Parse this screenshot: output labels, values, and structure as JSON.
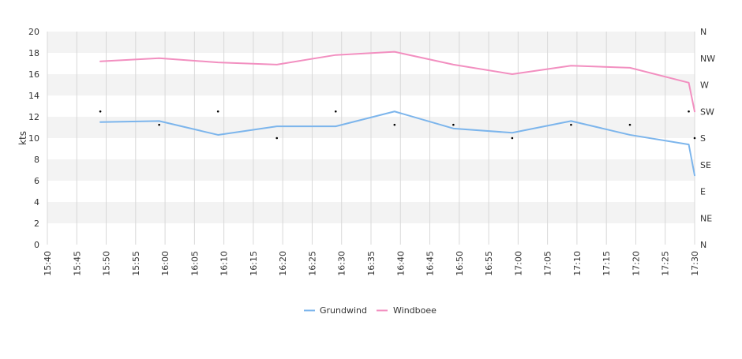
{
  "chart_data": {
    "type": "line",
    "ylabel": "kts",
    "ylim": [
      0,
      20
    ],
    "yticks": [
      "0",
      "2",
      "4",
      "6",
      "8",
      "10",
      "12",
      "14",
      "16",
      "18",
      "20"
    ],
    "x_ticks": [
      "15:40",
      "15:45",
      "15:50",
      "15:55",
      "16:00",
      "16:05",
      "16:10",
      "16:15",
      "16:20",
      "16:25",
      "16:30",
      "16:35",
      "16:40",
      "16:45",
      "16:50",
      "16:55",
      "17:00",
      "17:05",
      "17:10",
      "17:15",
      "17:20",
      "17:25",
      "17:30"
    ],
    "y2_ticks": [
      "N",
      "NE",
      "E",
      "SE",
      "S",
      "SW",
      "W",
      "NW",
      "N"
    ],
    "x_range": [
      "15:40",
      "17:30"
    ],
    "grid": true,
    "legend_position": "bottom",
    "series": [
      {
        "name": "Grundwind",
        "color": "#7cb5ec",
        "x": [
          "15:49",
          "15:59",
          "16:09",
          "16:19",
          "16:29",
          "16:39",
          "16:49",
          "16:59",
          "17:09",
          "17:19",
          "17:29",
          "17:30"
        ],
        "values": [
          11.5,
          11.6,
          10.3,
          11.1,
          11.1,
          12.5,
          10.9,
          10.5,
          11.6,
          10.3,
          9.4,
          6.5
        ]
      },
      {
        "name": "Windboee",
        "color": "#f28fc0",
        "x": [
          "15:49",
          "15:59",
          "16:09",
          "16:19",
          "16:29",
          "16:39",
          "16:49",
          "16:59",
          "17:09",
          "17:19",
          "17:29",
          "17:30"
        ],
        "values": [
          17.2,
          17.5,
          17.1,
          16.9,
          17.8,
          18.1,
          16.9,
          16.0,
          16.8,
          16.6,
          15.2,
          12.5
        ]
      }
    ],
    "direction_markers": {
      "x": [
        "15:49",
        "15:59",
        "16:09",
        "16:19",
        "16:29",
        "16:39",
        "16:49",
        "16:59",
        "17:09",
        "17:19",
        "17:29",
        "17:30"
      ],
      "values": [
        12.5,
        11.25,
        12.5,
        10.0,
        12.5,
        11.25,
        11.25,
        10.0,
        11.25,
        11.25,
        12.5,
        10.0
      ]
    }
  }
}
